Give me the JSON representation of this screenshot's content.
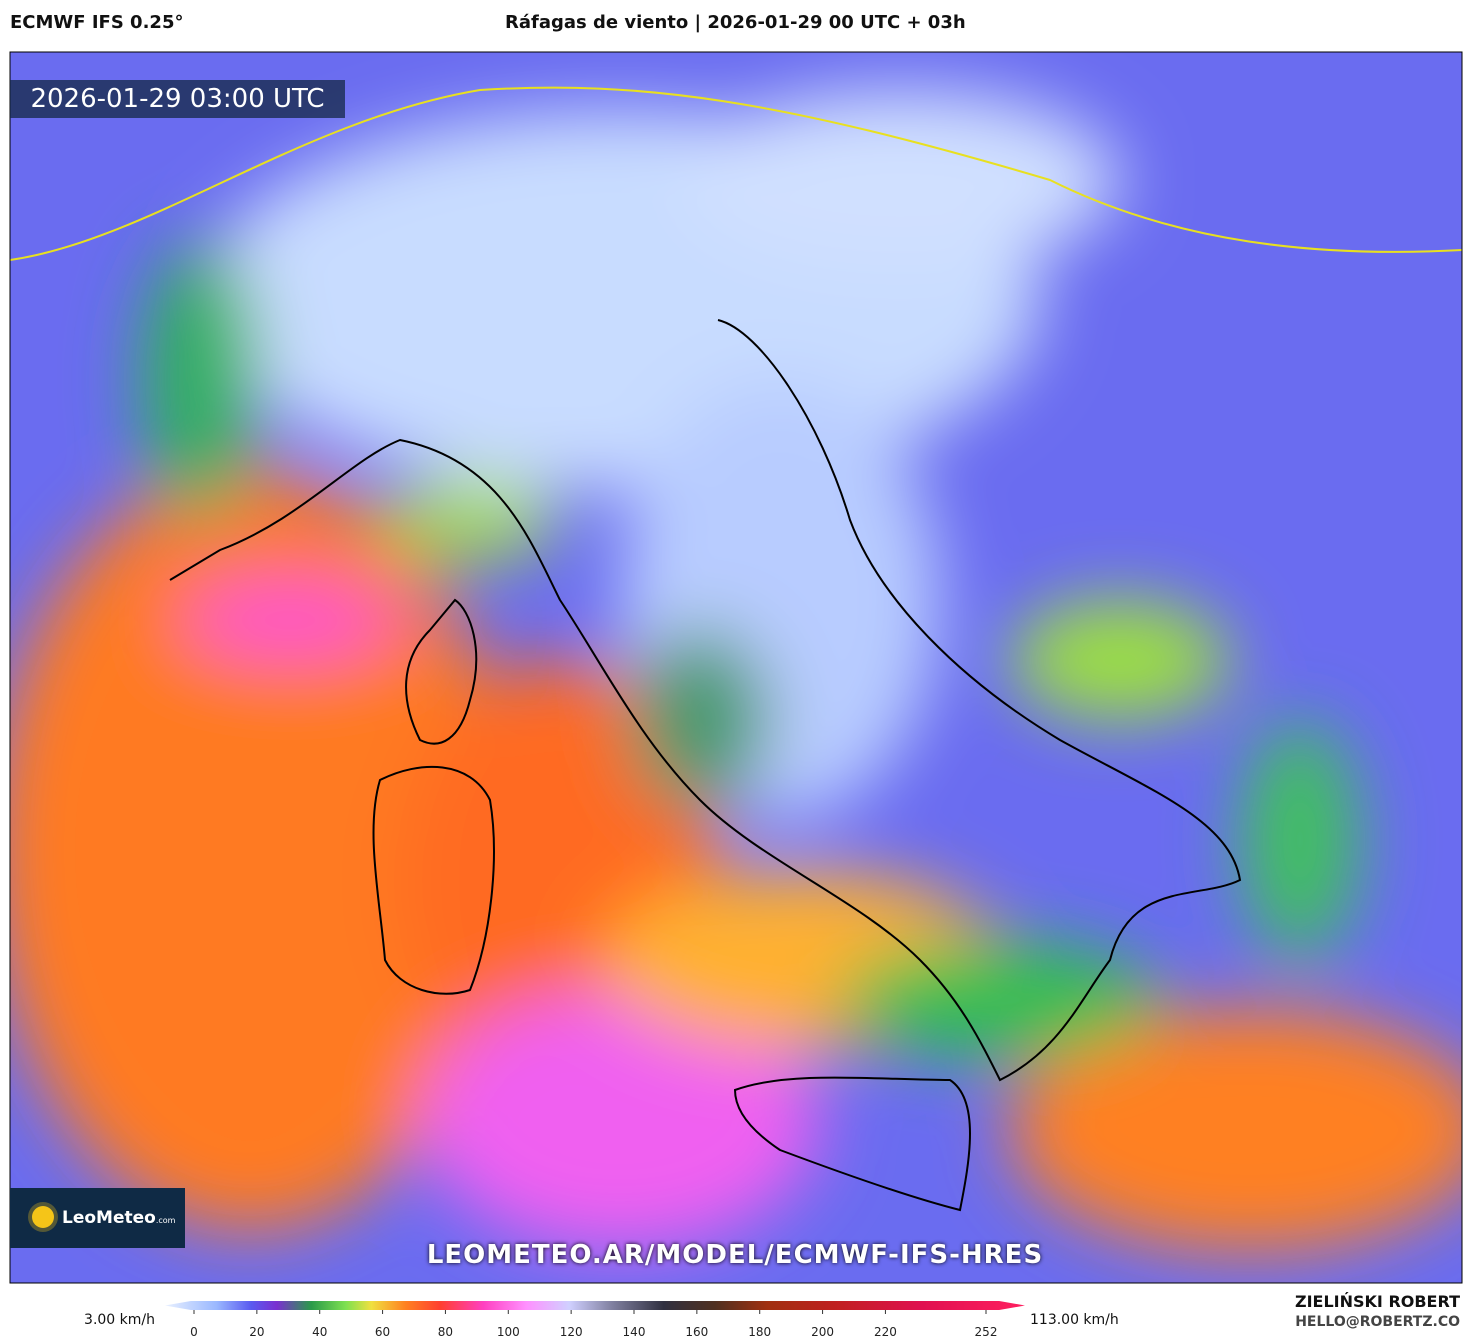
{
  "header": {
    "model": "ECMWF IFS 0.25°",
    "title": "Ráfagas de viento | 2026-01-29 00 UTC + 03h"
  },
  "map": {
    "timestamp": "2026-01-29 03:00 UTC",
    "logo": "LeoMeteo",
    "logo_suffix": ".com",
    "url": "LEOMETEO.AR/MODEL/ECMWF-IFS-HRES"
  },
  "colorbar": {
    "min_label": "3.00 km/h",
    "max_label": "113.00 km/h",
    "ticks": [
      0,
      20,
      40,
      60,
      80,
      100,
      120,
      140,
      160,
      180,
      200,
      220,
      252
    ]
  },
  "footer": {
    "author": "ZIELIŃSKI ROBERT",
    "email": "HELLO@ROBERTZ.CO"
  }
}
